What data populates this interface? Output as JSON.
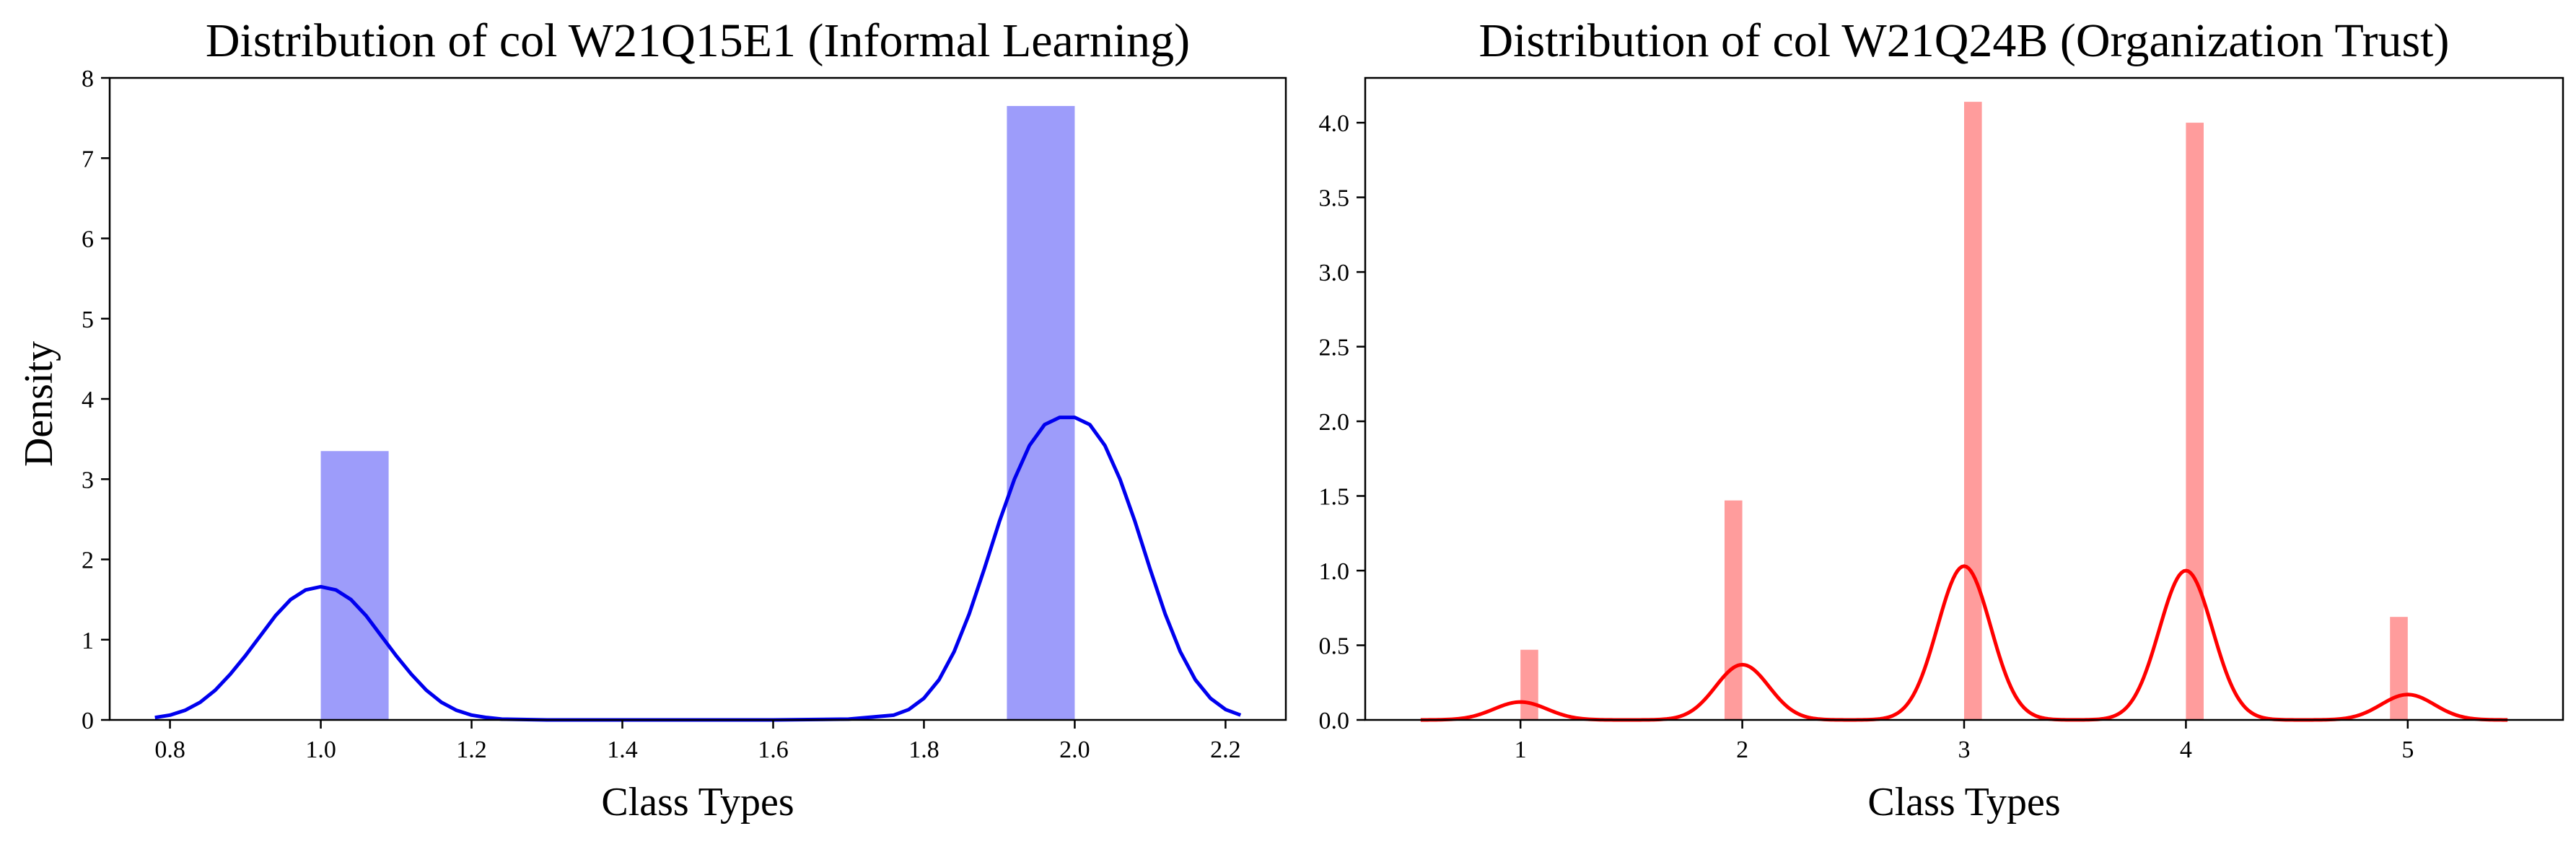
{
  "chart_data": [
    {
      "type": "bar",
      "title": "Distribution of col W21Q15E1 (Informal Learning)",
      "xlabel": "Class Types",
      "ylabel": "Density",
      "xlim": [
        0.72,
        2.28
      ],
      "ylim": [
        0,
        8
      ],
      "xticks": [
        "0.8",
        "1.0",
        "1.2",
        "1.4",
        "1.6",
        "1.8",
        "2.0",
        "2.2"
      ],
      "yticks": [
        "0",
        "1",
        "2",
        "3",
        "4",
        "5",
        "6",
        "7",
        "8"
      ],
      "colors": {
        "bars": "#9d9cfa",
        "kde": "#0000ee"
      },
      "histogram": [
        {
          "x0": 1.0,
          "x1": 1.09,
          "density": 3.35
        },
        {
          "x0": 1.91,
          "x1": 2.0,
          "density": 7.65
        }
      ],
      "kde": {
        "x": [
          0.78,
          0.8,
          0.82,
          0.84,
          0.86,
          0.88,
          0.9,
          0.92,
          0.94,
          0.96,
          0.98,
          1.0,
          1.02,
          1.04,
          1.06,
          1.08,
          1.1,
          1.12,
          1.14,
          1.16,
          1.18,
          1.2,
          1.22,
          1.24,
          1.3,
          1.4,
          1.5,
          1.6,
          1.7,
          1.76,
          1.78,
          1.8,
          1.82,
          1.84,
          1.86,
          1.88,
          1.9,
          1.92,
          1.94,
          1.96,
          1.98,
          2.0,
          2.02,
          2.04,
          2.06,
          2.08,
          2.1,
          2.12,
          2.14,
          2.16,
          2.18,
          2.2,
          2.22
        ],
        "y": [
          0.03,
          0.06,
          0.12,
          0.22,
          0.37,
          0.57,
          0.8,
          1.05,
          1.3,
          1.5,
          1.62,
          1.66,
          1.62,
          1.5,
          1.3,
          1.05,
          0.8,
          0.57,
          0.37,
          0.22,
          0.12,
          0.06,
          0.03,
          0.01,
          0.0,
          0.0,
          0.0,
          0.0,
          0.01,
          0.06,
          0.13,
          0.27,
          0.5,
          0.85,
          1.32,
          1.88,
          2.47,
          3.0,
          3.42,
          3.68,
          3.77,
          3.77,
          3.68,
          3.42,
          3.0,
          2.47,
          1.88,
          1.32,
          0.85,
          0.5,
          0.27,
          0.13,
          0.06
        ]
      }
    },
    {
      "type": "bar",
      "title": "Distribution of col W21Q24B (Organization Trust)",
      "xlabel": "Class Types",
      "ylabel": "",
      "xlim": [
        0.3,
        5.7
      ],
      "ylim": [
        0,
        4.3
      ],
      "xticks": [
        "1",
        "2",
        "3",
        "4",
        "5"
      ],
      "yticks": [
        "0.0",
        "0.5",
        "1.0",
        "1.5",
        "2.0",
        "2.5",
        "3.0",
        "3.5",
        "4.0"
      ],
      "colors": {
        "bars": "#ff9c9c",
        "kde": "#ff0000"
      },
      "histogram": [
        {
          "x0": 1.0,
          "x1": 1.08,
          "density": 0.47
        },
        {
          "x0": 1.92,
          "x1": 2.0,
          "density": 1.47
        },
        {
          "x0": 3.0,
          "x1": 3.08,
          "density": 4.14
        },
        {
          "x0": 4.0,
          "x1": 4.08,
          "density": 4.0
        },
        {
          "x0": 4.92,
          "x1": 5.0,
          "density": 0.69
        }
      ],
      "kde": {
        "modes": [
          {
            "center": 1.0,
            "peak": 0.12
          },
          {
            "center": 2.0,
            "peak": 0.37
          },
          {
            "center": 3.0,
            "peak": 1.03
          },
          {
            "center": 4.0,
            "peak": 1.0
          },
          {
            "center": 5.0,
            "peak": 0.17
          }
        ],
        "sigma": 0.12,
        "range": [
          0.55,
          5.45
        ]
      }
    }
  ]
}
